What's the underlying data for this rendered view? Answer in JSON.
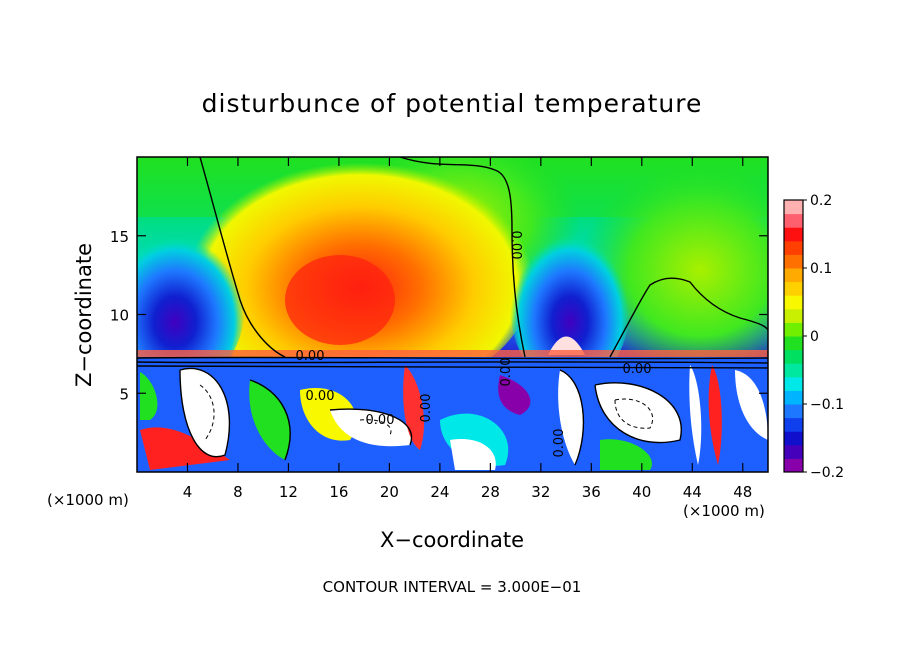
{
  "chart_data": {
    "type": "heatmap",
    "title": "disturbunce of potential temperature",
    "xlabel": "X−coordinate",
    "ylabel": "Z−coordinate",
    "x_unit_left": "(×1000 m)",
    "x_unit_right": "(×1000 m)",
    "footer": "CONTOUR INTERVAL = 3.000E−01",
    "xlim": [
      0,
      50
    ],
    "ylim": [
      0,
      20
    ],
    "x_ticks": [
      4,
      8,
      12,
      16,
      20,
      24,
      28,
      32,
      36,
      40,
      44,
      48
    ],
    "y_ticks": [
      5,
      10,
      15
    ],
    "contour_interval": 0.3,
    "contour_labels": [
      "0.00",
      "0.00",
      "0.00",
      "0.00",
      "0.00",
      "0.00",
      "0.00",
      "0.00"
    ],
    "colorbar": {
      "range": [
        -0.2,
        0.2
      ],
      "tick_values": [
        0.2,
        0.1,
        0,
        -0.1,
        -0.2
      ],
      "tick_labels": [
        "0.2",
        "0.1",
        "0",
        "−0.1",
        "−0.2"
      ],
      "colors": [
        "#8800aa",
        "#4400bb",
        "#1010cc",
        "#1040ee",
        "#1e78ff",
        "#00b4ff",
        "#00e8e8",
        "#00e8a0",
        "#00e060",
        "#20e020",
        "#70f000",
        "#c8f000",
        "#f8f800",
        "#ffd000",
        "#ffaa00",
        "#ff7000",
        "#ff4000",
        "#ff1010",
        "#ff6070",
        "#ffb0b0"
      ]
    }
  }
}
